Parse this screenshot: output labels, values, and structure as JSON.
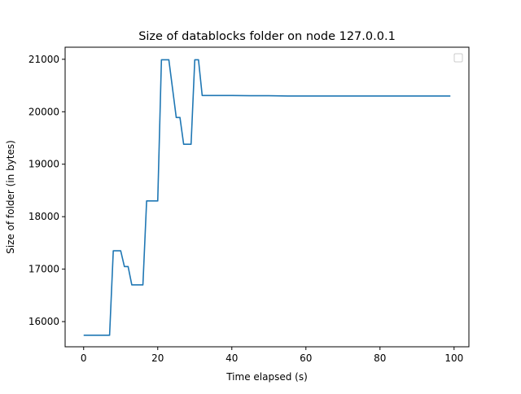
{
  "chart_data": {
    "type": "line",
    "title": "Size of datablocks folder on node 127.0.0.1",
    "xlabel": "Time elapsed (s)",
    "ylabel": "Size of folder (in bytes)",
    "xlim": [
      -5,
      104
    ],
    "ylim": [
      15520,
      21230
    ],
    "xticks": [
      0,
      20,
      40,
      60,
      80,
      100
    ],
    "yticks": [
      16000,
      17000,
      18000,
      19000,
      20000,
      21000
    ],
    "grid": false,
    "legend": {
      "placement": "top-right",
      "entries": []
    },
    "series": [
      {
        "color": "#1f77b4",
        "x": [
          0,
          1,
          2,
          3,
          4,
          5,
          6,
          7,
          8,
          9,
          10,
          11,
          12,
          13,
          14,
          15,
          16,
          17,
          18,
          19,
          20,
          21,
          22,
          23,
          24,
          25,
          26,
          27,
          28,
          29,
          30,
          31,
          32,
          33,
          35,
          40,
          45,
          50,
          55,
          60,
          70,
          80,
          90,
          99
        ],
        "y": [
          15740,
          15740,
          15740,
          15740,
          15740,
          15740,
          15740,
          15740,
          17350,
          17350,
          17350,
          17050,
          17050,
          16700,
          16700,
          16700,
          16700,
          18300,
          18300,
          18300,
          18300,
          20990,
          20990,
          20990,
          20440,
          19890,
          19890,
          19380,
          19380,
          19380,
          20990,
          20990,
          20310,
          20310,
          20310,
          20310,
          20305,
          20305,
          20300,
          20300,
          20300,
          20300,
          20300,
          20300
        ]
      }
    ]
  }
}
